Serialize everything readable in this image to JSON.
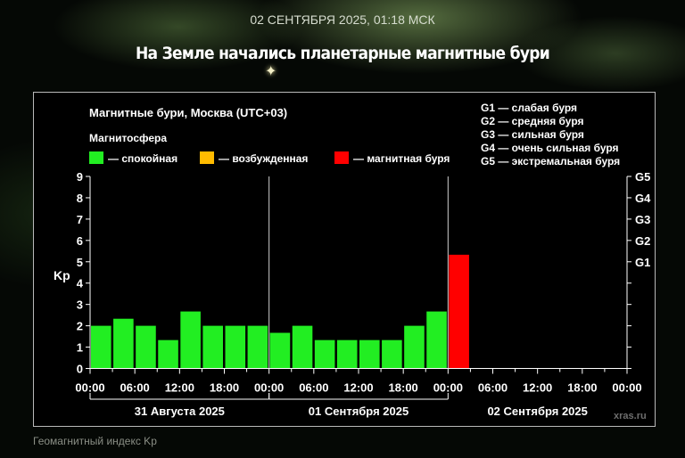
{
  "page": {
    "dateline": "02 СЕНТЯБРЯ 2025, 01:18 МСК",
    "headline": "На Земле начались планетарные магнитные бури",
    "caption": "Геомагнитный индекс Kp"
  },
  "chart_data": {
    "type": "bar",
    "title": "Магнитные бури, Москва (UTC+03)",
    "legend_title": "Магнитосфера",
    "legend": [
      {
        "label": "— спокойная",
        "color": "#22ee22"
      },
      {
        "label": "— возбужденная",
        "color": "#ffbb00"
      },
      {
        "label": "— магнитная буря",
        "color": "#ff0000"
      }
    ],
    "g_scale": [
      {
        "level": "G1",
        "text": "G1 — слабая буря",
        "kp": 5
      },
      {
        "level": "G2",
        "text": "G2 — средняя буря",
        "kp": 6
      },
      {
        "level": "G3",
        "text": "G3 — сильная буря",
        "kp": 7
      },
      {
        "level": "G4",
        "text": "G4 — очень сильная буря",
        "kp": 8
      },
      {
        "level": "G5",
        "text": "G5 — экстремальная буря",
        "kp": 9
      }
    ],
    "ylabel": "Kp",
    "ylim": [
      0,
      9
    ],
    "yticks": [
      "0",
      "1",
      "2",
      "3",
      "4",
      "5",
      "6",
      "7",
      "8",
      "9"
    ],
    "xticks": [
      "00:00",
      "06:00",
      "12:00",
      "18:00",
      "00:00",
      "06:00",
      "12:00",
      "18:00",
      "00:00",
      "06:00",
      "12:00",
      "18:00",
      "00:00"
    ],
    "days": [
      "31 Августа 2025",
      "01 Сентября 2025",
      "02 Сентября 2025"
    ],
    "bin_hours": 3,
    "values": [
      2.0,
      2.33,
      2.0,
      1.33,
      2.67,
      2.0,
      2.0,
      2.0,
      1.67,
      2.0,
      1.33,
      1.33,
      1.33,
      1.33,
      2.0,
      2.67,
      5.33
    ],
    "bar_colors": [
      "#22ee22",
      "#22ee22",
      "#22ee22",
      "#22ee22",
      "#22ee22",
      "#22ee22",
      "#22ee22",
      "#22ee22",
      "#22ee22",
      "#22ee22",
      "#22ee22",
      "#22ee22",
      "#22ee22",
      "#22ee22",
      "#22ee22",
      "#22ee22",
      "#ff0000"
    ],
    "watermark": "xras.ru",
    "grid": false,
    "legend_position": "top"
  }
}
